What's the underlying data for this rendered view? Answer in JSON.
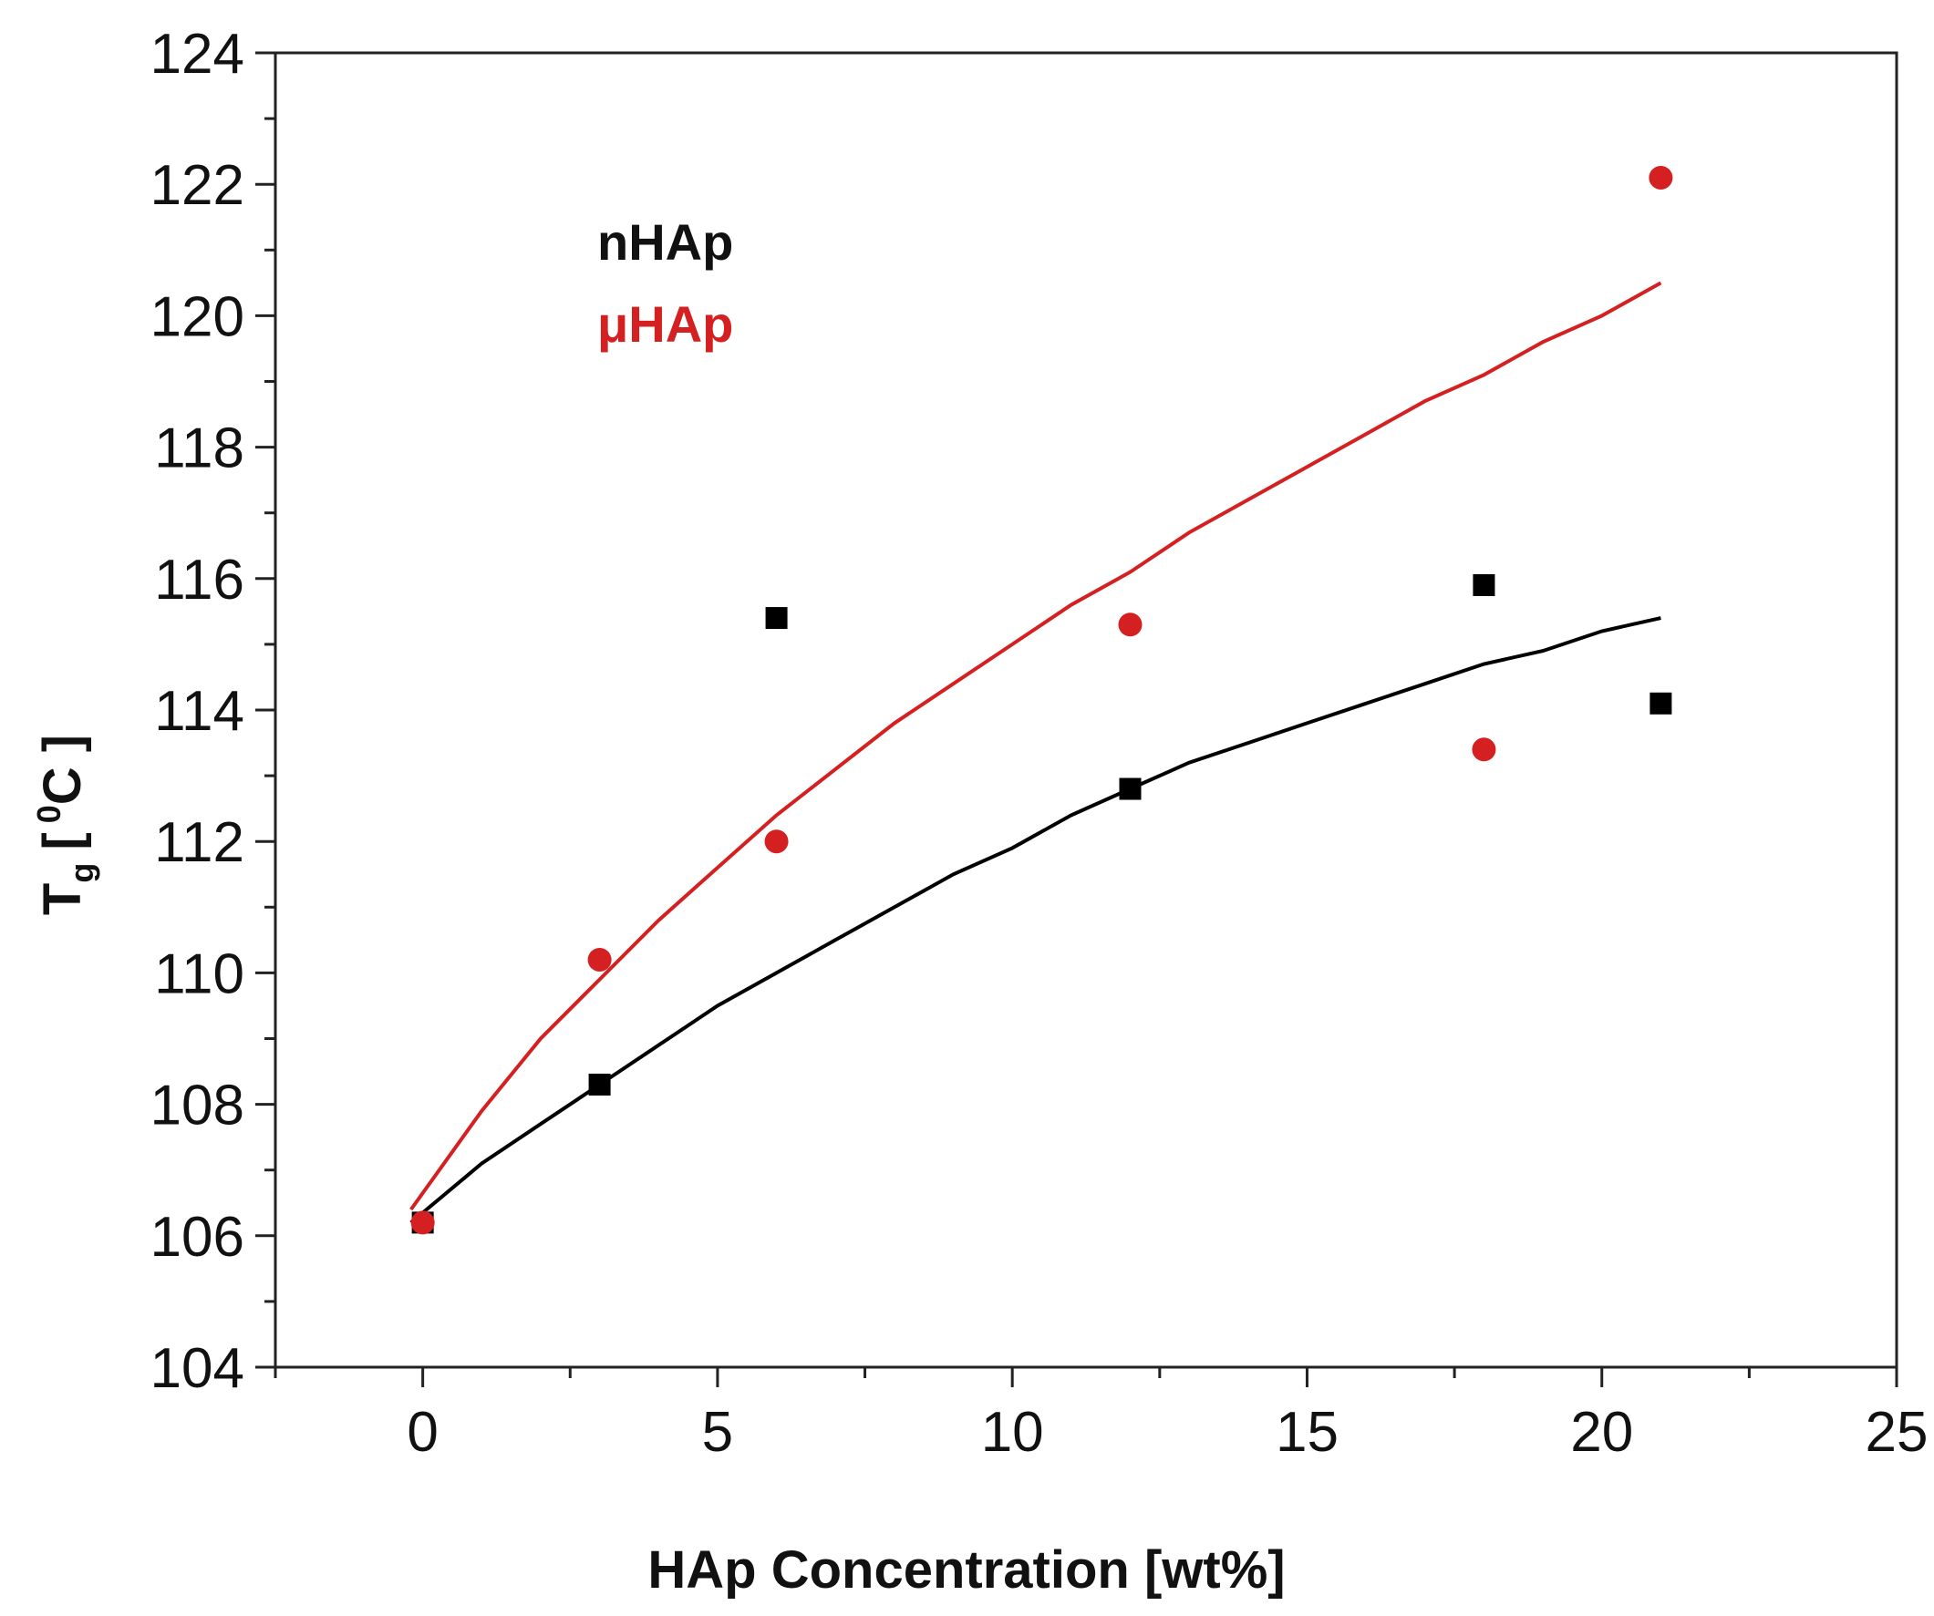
{
  "chart_data": {
    "type": "scatter",
    "xlabel": "HAp Concentration [wt%]",
    "ylabel_main": "T",
    "ylabel_sub": "g",
    "ylabel_open": "[",
    "ylabel_sup": "0",
    "ylabel_unit": "C ]",
    "xlim": [
      -2.5,
      25
    ],
    "ylim": [
      104,
      124
    ],
    "x_ticks": [
      0,
      5,
      10,
      15,
      20,
      25
    ],
    "y_ticks": [
      104,
      106,
      108,
      110,
      112,
      114,
      116,
      118,
      120,
      122,
      124
    ],
    "legend_position": "top-left",
    "series": [
      {
        "name": "nHAp",
        "color": "#000000",
        "marker": "square",
        "x": [
          0,
          3,
          6,
          12,
          18,
          21
        ],
        "y": [
          106.2,
          108.3,
          115.4,
          112.8,
          115.9,
          114.1
        ],
        "fit_x": [
          -0.2,
          1,
          2,
          3,
          4,
          5,
          6,
          7,
          8,
          9,
          10,
          11,
          12,
          13,
          14,
          15,
          16,
          17,
          18,
          19,
          20,
          21
        ],
        "fit_y": [
          106.2,
          107.1,
          107.7,
          108.3,
          108.9,
          109.5,
          110.0,
          110.5,
          111.0,
          111.5,
          111.9,
          112.4,
          112.8,
          113.2,
          113.5,
          113.8,
          114.1,
          114.4,
          114.7,
          114.9,
          115.2,
          115.4
        ]
      },
      {
        "name": "μHAp",
        "color": "#d42020",
        "marker": "circle",
        "x": [
          0,
          3,
          6,
          12,
          18,
          21
        ],
        "y": [
          106.2,
          110.2,
          112.0,
          115.3,
          113.4,
          122.1
        ],
        "fit_x": [
          -0.2,
          1,
          2,
          3,
          4,
          5,
          6,
          7,
          8,
          9,
          10,
          11,
          12,
          13,
          14,
          15,
          16,
          17,
          18,
          19,
          20,
          21
        ],
        "fit_y": [
          106.4,
          107.9,
          109.0,
          109.9,
          110.8,
          111.6,
          112.4,
          113.1,
          113.8,
          114.4,
          115.0,
          115.6,
          116.1,
          116.7,
          117.2,
          117.7,
          118.2,
          118.7,
          119.1,
          119.6,
          120.0,
          120.5
        ]
      }
    ]
  }
}
